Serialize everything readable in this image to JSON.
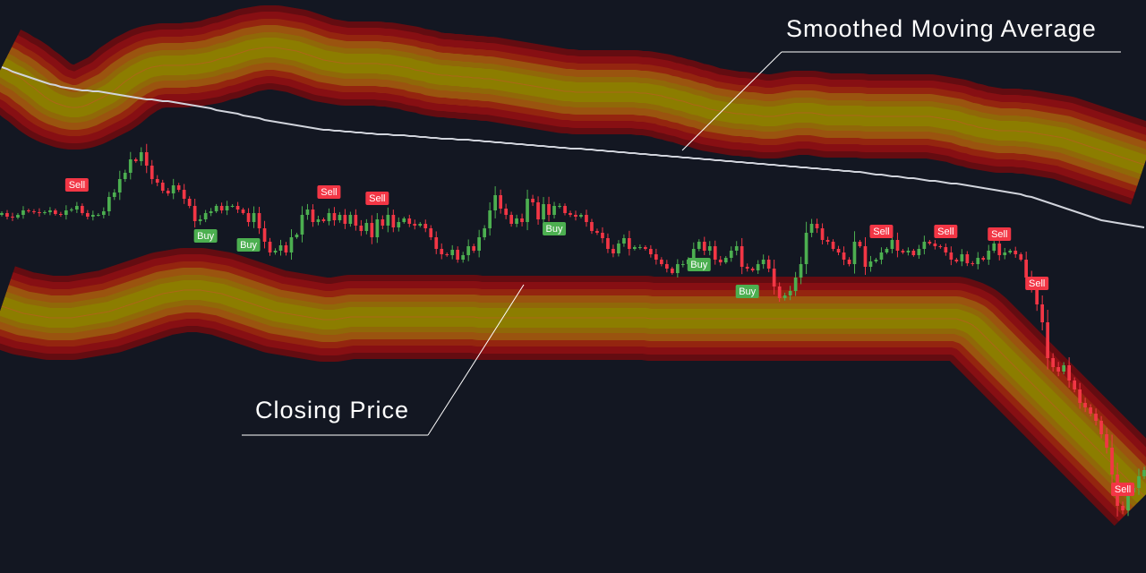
{
  "colors": {
    "background": "#131722",
    "candle_up": "#4caf50",
    "candle_down": "#f23645",
    "sma_line": "#d1d4dc",
    "band_core": "#8c8000",
    "band_mid": "#9a5a10",
    "band_edge": "#8b0f14",
    "buy_label_bg": "#4caf50",
    "sell_label_bg": "#f23645",
    "annotation": "#ffffff"
  },
  "annotations": {
    "sma": "Smoothed Moving Average",
    "close": "Closing Price"
  },
  "chart_data": {
    "type": "candlestick",
    "grid": false,
    "legend": "none",
    "ylim": [
      0,
      640
    ],
    "x_range": [
      0,
      213
    ],
    "closes": [
      402,
      398,
      397,
      400,
      405,
      404,
      403,
      402,
      403,
      405,
      401,
      400,
      405,
      406,
      410,
      402,
      398,
      400,
      400,
      404,
      420,
      425,
      440,
      447,
      462,
      460,
      470,
      455,
      440,
      436,
      427,
      424,
      433,
      428,
      418,
      410,
      393,
      395,
      402,
      404,
      410,
      405,
      410,
      410,
      406,
      402,
      392,
      402,
      385,
      370,
      358,
      360,
      366,
      358,
      375,
      378,
      400,
      406,
      392,
      395,
      393,
      402,
      394,
      400,
      390,
      400,
      388,
      382,
      391,
      375,
      395,
      388,
      400,
      386,
      392,
      396,
      390,
      388,
      390,
      385,
      375,
      362,
      356,
      355,
      361,
      350,
      355,
      365,
      360,
      375,
      385,
      405,
      422,
      407,
      400,
      390,
      396,
      392,
      418,
      414,
      395,
      412,
      400,
      410,
      410,
      402,
      400,
      398,
      400,
      392,
      382,
      380,
      374,
      362,
      357,
      368,
      374,
      362,
      364,
      364,
      362,
      356,
      350,
      345,
      340,
      335,
      345,
      345,
      350,
      362,
      370,
      360,
      365,
      350,
      347,
      352,
      360,
      365,
      342,
      340,
      338,
      345,
      350,
      340,
      320,
      307,
      310,
      315,
      330,
      345,
      380,
      390,
      385,
      372,
      370,
      362,
      358,
      350,
      345,
      370,
      365,
      342,
      348,
      350,
      358,
      362,
      372,
      360,
      358,
      360,
      355,
      362,
      370,
      368,
      365,
      364,
      358,
      350,
      348,
      356,
      346,
      345,
      352,
      350,
      360,
      368,
      355,
      358,
      360,
      356,
      350,
      330,
      320,
      300,
      280,
      240,
      230,
      225,
      232,
      215,
      205,
      190,
      185,
      178,
      170,
      155,
      140,
      110,
      75,
      70,
      90,
      95,
      108,
      115
    ],
    "sma": [
      565,
      563,
      560,
      558,
      556,
      554,
      552,
      550,
      548,
      546,
      545,
      543,
      542,
      541,
      540,
      539,
      539,
      538,
      538,
      537,
      536,
      535,
      534,
      533,
      532,
      531,
      530,
      529,
      529,
      528,
      527,
      527,
      526,
      525,
      524,
      523,
      522,
      521,
      520,
      519,
      517,
      516,
      515,
      514,
      513,
      511,
      510,
      509,
      508,
      506,
      505,
      504,
      503,
      502,
      501,
      500,
      499,
      498,
      497,
      496,
      495,
      495,
      494,
      494,
      493,
      493,
      492,
      492,
      491,
      491,
      490,
      490,
      490,
      489,
      489,
      489,
      488,
      488,
      487,
      487,
      486,
      486,
      485,
      485,
      485,
      484,
      484,
      484,
      483,
      483,
      482,
      482,
      481,
      481,
      480,
      480,
      479,
      479,
      478,
      478,
      477,
      477,
      476,
      476,
      475,
      475,
      474,
      474,
      474,
      473,
      473,
      472,
      472,
      471,
      471,
      470,
      470,
      469,
      469,
      468,
      468,
      467,
      467,
      466,
      466,
      465,
      465,
      464,
      464,
      463,
      463,
      462,
      462,
      461,
      461,
      460,
      460,
      459,
      459,
      458,
      458,
      457,
      457,
      456,
      456,
      455,
      455,
      454,
      454,
      453,
      453,
      452,
      452,
      451,
      451,
      450,
      450,
      449,
      449,
      448,
      448,
      447,
      446,
      445,
      445,
      444,
      443,
      443,
      442,
      441,
      441,
      440,
      439,
      438,
      438,
      437,
      436,
      435,
      435,
      434,
      433,
      432,
      431,
      430,
      429,
      428,
      427,
      426,
      425,
      424,
      423,
      421,
      420,
      418,
      416,
      414,
      412,
      410,
      408,
      406,
      404,
      402,
      400,
      398,
      396,
      394,
      393,
      392,
      391,
      390,
      389,
      388,
      387,
      386
    ],
    "upper_band": [
      565,
      562,
      558,
      555,
      551,
      546,
      542,
      537,
      532,
      528,
      525,
      523,
      521,
      520,
      520,
      521,
      523,
      526,
      529,
      532,
      535,
      539,
      544,
      549,
      553,
      557,
      560,
      563,
      565,
      566,
      567,
      567,
      567,
      567,
      567,
      568,
      568,
      569,
      570,
      571,
      573,
      575,
      576,
      578,
      580,
      582,
      584,
      585,
      586,
      587,
      587,
      587,
      586,
      585,
      584,
      583,
      581,
      579,
      577,
      575,
      573,
      572,
      571,
      570,
      569,
      569,
      569,
      569,
      569,
      569,
      569,
      568,
      568,
      567,
      566,
      565,
      564,
      562,
      561,
      560,
      558,
      557,
      556,
      556,
      555,
      555,
      554,
      554,
      553,
      553,
      552,
      552,
      551,
      550,
      549,
      548,
      547,
      546,
      545,
      544,
      543,
      542,
      541,
      540,
      539,
      538,
      538,
      537,
      537,
      537,
      537,
      537,
      537,
      537,
      537,
      537,
      537,
      537,
      537,
      536,
      536,
      535,
      534,
      533,
      531,
      530,
      528,
      527,
      525,
      523,
      522,
      520,
      518,
      517,
      516,
      515,
      514,
      513,
      513,
      512,
      512,
      511,
      510,
      510,
      510,
      511,
      512,
      513,
      514,
      514,
      514,
      514,
      513,
      512,
      511,
      511,
      511,
      511,
      511,
      511,
      511,
      510,
      510,
      510,
      510,
      510,
      510,
      510,
      510,
      510,
      510,
      510,
      510,
      510,
      509,
      508,
      507,
      506,
      505,
      503,
      501,
      500,
      498,
      497,
      496,
      495,
      494,
      494,
      494,
      494,
      493,
      493,
      492,
      491,
      490,
      489,
      488,
      487,
      486,
      484,
      482,
      480,
      478,
      476,
      474,
      472,
      470,
      468,
      466,
      464,
      462,
      460,
      458,
      456
    ],
    "lower_band": [
      298,
      296,
      294,
      292,
      290,
      289,
      288,
      287,
      286,
      285,
      285,
      285,
      285,
      285,
      286,
      287,
      288,
      289,
      290,
      291,
      292,
      294,
      296,
      298,
      300,
      302,
      304,
      306,
      308,
      310,
      312,
      313,
      314,
      315,
      316,
      316,
      316,
      316,
      315,
      314,
      313,
      312,
      310,
      308,
      306,
      304,
      302,
      300,
      298,
      296,
      294,
      292,
      291,
      290,
      289,
      288,
      287,
      286,
      285,
      284,
      283,
      283,
      283,
      284,
      285,
      286,
      286,
      286,
      286,
      286,
      286,
      286,
      286,
      286,
      286,
      286,
      286,
      286,
      286,
      286,
      286,
      286,
      286,
      286,
      286,
      286,
      286,
      286,
      286,
      285,
      285,
      285,
      285,
      285,
      285,
      285,
      285,
      285,
      285,
      285,
      285,
      285,
      285,
      285,
      285,
      285,
      285,
      285,
      285,
      285,
      285,
      285,
      285,
      285,
      285,
      285,
      285,
      285,
      285,
      285,
      285,
      284,
      284,
      284,
      284,
      284,
      284,
      284,
      284,
      284,
      284,
      284,
      284,
      284,
      284,
      284,
      284,
      284,
      284,
      284,
      284,
      284,
      284,
      284,
      284,
      284,
      284,
      284,
      284,
      284,
      284,
      284,
      284,
      284,
      284,
      284,
      284,
      284,
      284,
      284,
      284,
      284,
      284,
      284,
      284,
      284,
      284,
      284,
      284,
      284,
      284,
      284,
      284,
      284,
      284,
      284,
      284,
      284,
      284,
      282,
      280,
      277,
      272,
      266,
      260,
      254,
      248,
      242,
      236,
      230,
      224,
      218,
      212,
      206,
      200,
      194,
      188,
      182,
      176,
      170,
      164,
      158,
      152,
      146,
      140,
      134,
      128,
      122,
      116,
      110,
      104,
      98,
      92,
      86
    ],
    "signals": [
      {
        "type": "Sell",
        "x": 14
      },
      {
        "type": "Buy",
        "x": 38
      },
      {
        "type": "Buy",
        "x": 46
      },
      {
        "type": "Sell",
        "x": 61
      },
      {
        "type": "Sell",
        "x": 70
      },
      {
        "type": "Buy",
        "x": 103
      },
      {
        "type": "Buy",
        "x": 130
      },
      {
        "type": "Buy",
        "x": 139
      },
      {
        "type": "Sell",
        "x": 164
      },
      {
        "type": "Sell",
        "x": 176
      },
      {
        "type": "Sell",
        "x": 186
      },
      {
        "type": "Sell",
        "x": 193
      },
      {
        "type": "Sell",
        "x": 209
      }
    ]
  }
}
